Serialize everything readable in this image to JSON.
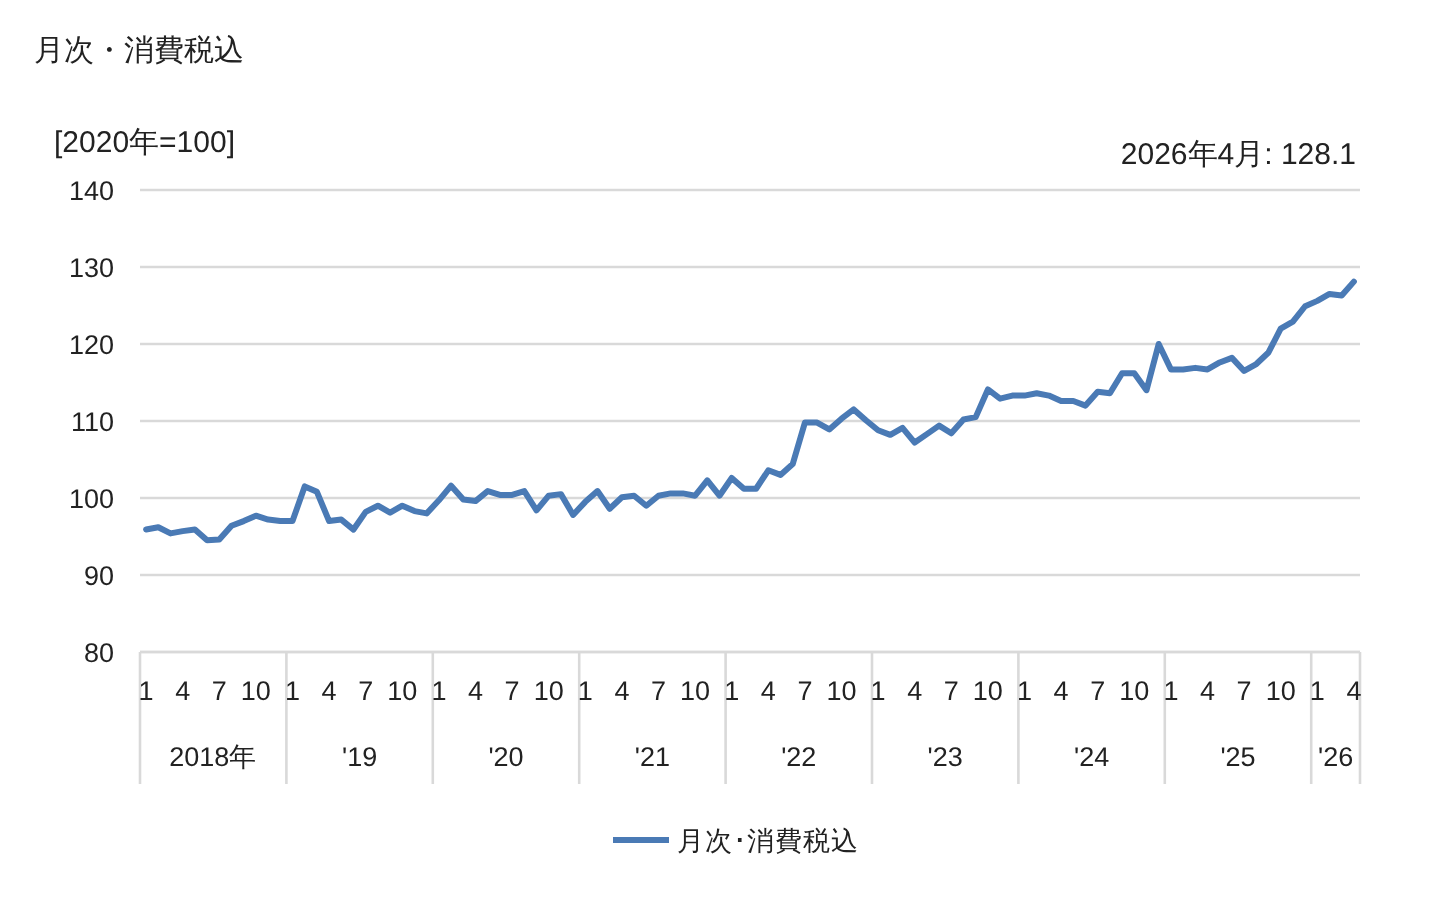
{
  "chart_data": {
    "type": "line",
    "title": "月次・消費税込",
    "ylabel": "[2020年=100]",
    "categories": [
      "1",
      null,
      null,
      "4",
      null,
      null,
      "7",
      null,
      null,
      "10",
      null,
      null,
      "1",
      null,
      null,
      "4",
      null,
      null,
      "7",
      null,
      null,
      "10",
      null,
      null,
      "1",
      null,
      null,
      "4",
      null,
      null,
      "7",
      null,
      null,
      "10",
      null,
      null,
      "1",
      null,
      null,
      "4",
      null,
      null,
      "7",
      null,
      null,
      "10",
      null,
      null,
      "1",
      null,
      null,
      "4",
      null,
      null,
      "7",
      null,
      null,
      "10",
      null,
      null,
      "1",
      null,
      null,
      "4",
      null,
      null,
      "7",
      null,
      null,
      "10",
      null,
      null,
      "1",
      null,
      null,
      "4",
      null,
      null,
      "7",
      null,
      null,
      "10",
      null,
      null,
      "1",
      null,
      null,
      "4",
      null,
      null,
      "7",
      null,
      null,
      "10",
      null,
      null,
      "1",
      null,
      null,
      "4"
    ],
    "series": [
      {
        "name": "月次･消費税込",
        "color": "#4a7ab5",
        "values": [
          95.9,
          96.2,
          95.4,
          95.7,
          95.9,
          94.5,
          94.6,
          96.4,
          97.0,
          97.7,
          97.2,
          97.0,
          97.0,
          101.5,
          100.8,
          97.0,
          97.2,
          95.9,
          98.2,
          99.0,
          98.1,
          99.0,
          98.3,
          98.0,
          99.7,
          101.6,
          99.8,
          99.6,
          100.9,
          100.4,
          100.4,
          100.9,
          98.4,
          100.3,
          100.5,
          97.8,
          99.5,
          100.9,
          98.6,
          100.1,
          100.3,
          99.0,
          100.3,
          100.6,
          100.6,
          100.3,
          102.3,
          100.3,
          102.6,
          101.2,
          101.2,
          103.6,
          103.0,
          104.4,
          109.8,
          109.8,
          108.9,
          110.3,
          111.5,
          110.1,
          108.8,
          108.2,
          109.1,
          107.2,
          108.3,
          109.4,
          108.4,
          110.2,
          110.5,
          114.1,
          112.9,
          113.3,
          113.3,
          113.6,
          113.3,
          112.6,
          112.6,
          112.0,
          113.8,
          113.6,
          116.2,
          116.2,
          114.0,
          120.0,
          116.7,
          116.7,
          116.9,
          116.7,
          117.6,
          118.2,
          116.5,
          117.4,
          118.9,
          122.0,
          122.9,
          124.9,
          125.6,
          126.5,
          126.3,
          128.1
        ]
      }
    ],
    "ylim": [
      80,
      140
    ],
    "yticks": [
      80,
      90,
      100,
      110,
      120,
      130,
      140
    ],
    "grid": "y",
    "legend": "bottom",
    "annotations": [
      "2026年4月: 128.1",
      "2018年",
      "'19",
      "'20",
      "'21",
      "'22",
      "'23",
      "'24",
      "'25",
      "'26"
    ]
  }
}
